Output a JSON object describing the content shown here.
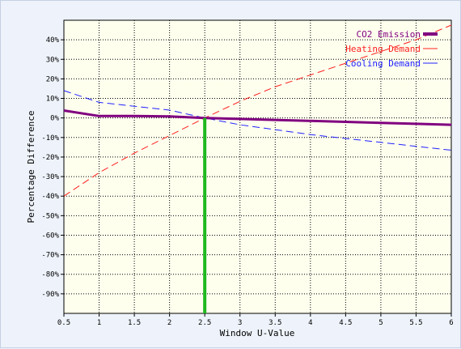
{
  "chart_data": {
    "type": "line",
    "xlabel": "Window U-Value",
    "ylabel": "Percentage Difference",
    "xlim": [
      0.5,
      6
    ],
    "ylim": [
      -100,
      50
    ],
    "x_ticks": [
      0.5,
      1,
      1.5,
      2,
      2.5,
      3,
      3.5,
      4,
      4.5,
      5,
      5.5,
      6
    ],
    "x_tick_labels": [
      "0.5",
      "1",
      "1.5",
      "2",
      "2.5",
      "3",
      "3.5",
      "4",
      "4.5",
      "5",
      "5.5",
      "6"
    ],
    "y_ticks": [
      40,
      30,
      20,
      10,
      0,
      -10,
      -20,
      -30,
      -40,
      -50,
      -60,
      -70,
      -80,
      -90
    ],
    "y_tick_labels": [
      "40%",
      "30%",
      "20%",
      "10%",
      "0%",
      "-10%",
      "-20%",
      "-30%",
      "-40%",
      "-50%",
      "-60%",
      "-70%",
      "-80%",
      "-90%"
    ],
    "grid": true,
    "legend_position": "top-right",
    "marker_line": {
      "x": 2.5,
      "color": "#1fb81f"
    },
    "series": [
      {
        "name": "CO2 Emission",
        "color": "#800080",
        "dash": "solid",
        "x": [
          0.5,
          1,
          1.5,
          2,
          2.5,
          3,
          3.5,
          4,
          4.5,
          5,
          5.5,
          6
        ],
        "values": [
          3.8,
          1.0,
          1.0,
          0.8,
          0.0,
          -0.5,
          -1.0,
          -1.5,
          -2.0,
          -2.5,
          -3.0,
          -3.5
        ]
      },
      {
        "name": "Heating Demand",
        "color": "#ff2020",
        "dash": "dashed",
        "x": [
          0.5,
          1,
          1.5,
          2,
          2.5,
          3,
          3.5,
          4,
          4.5,
          5,
          5.5,
          6
        ],
        "values": [
          -40.0,
          -28.0,
          -18.0,
          -9.0,
          0.0,
          8.5,
          16.0,
          22.0,
          28.0,
          34.0,
          40.0,
          47.5
        ]
      },
      {
        "name": "Cooling Demand",
        "color": "#2020ff",
        "dash": "dashed",
        "x": [
          0.5,
          1,
          1.5,
          2,
          2.5,
          3,
          3.5,
          4,
          4.5,
          5,
          5.5,
          6
        ],
        "values": [
          14.0,
          8.0,
          6.0,
          4.0,
          0.0,
          -3.5,
          -6.0,
          -8.5,
          -10.5,
          -12.5,
          -14.5,
          -16.5
        ]
      }
    ]
  }
}
